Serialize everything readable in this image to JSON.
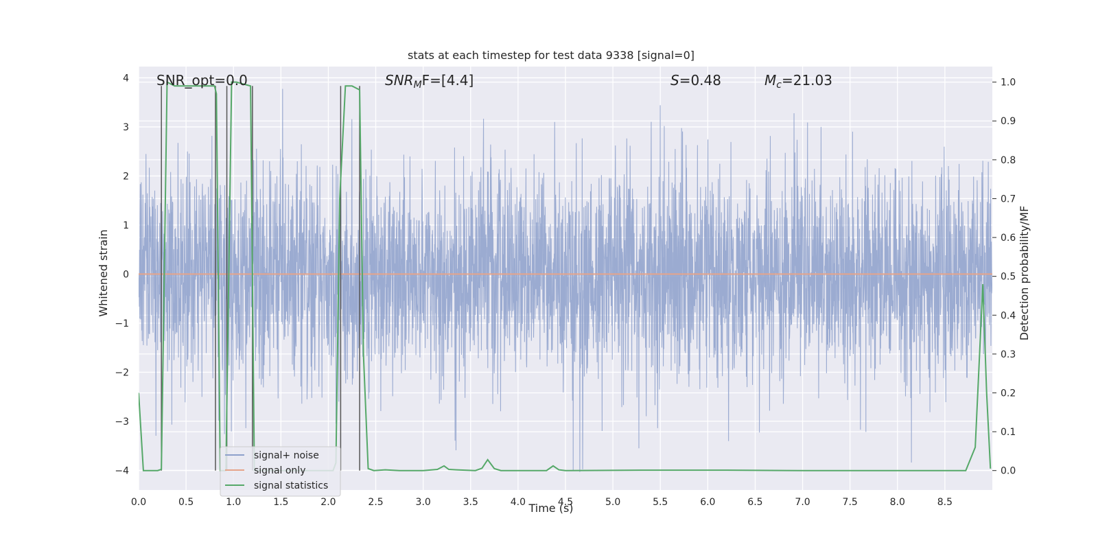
{
  "chart_data": {
    "type": "line",
    "title": "stats at each timestep for test data 9338 [signal=0]",
    "xlabel": "Time (s)",
    "ylabel": "Whitened strain",
    "ylabel_right": "Detection probability/MF",
    "xlim": [
      0.0,
      9.0
    ],
    "ylim": [
      -4.4,
      4.23
    ],
    "ylim_right": [
      -0.05,
      1.04
    ],
    "x_ticks": [
      "0.0",
      "0.5",
      "1.0",
      "1.5",
      "2.0",
      "2.5",
      "3.0",
      "3.5",
      "4.0",
      "4.5",
      "5.0",
      "5.5",
      "6.0",
      "6.5",
      "7.0",
      "7.5",
      "8.0",
      "8.5"
    ],
    "y_ticks": [
      "4",
      "3",
      "2",
      "1",
      "0",
      "−1",
      "−2",
      "−3",
      "−4"
    ],
    "y_right_ticks": [
      "1.0",
      "0.9",
      "0.8",
      "0.7",
      "0.6",
      "0.5",
      "0.4",
      "0.3",
      "0.2",
      "0.1",
      "0.0"
    ],
    "annotations": {
      "snr_opt": "SNR_opt=0.0",
      "snr_mf_sym": "SNR",
      "snr_mf_sub": "M",
      "snr_mf_rest": "F=[4.4]",
      "s_sym": "S",
      "s_val": "=0.48",
      "mc_sym": "M",
      "mc_sub": "c",
      "mc_val": "=21.03"
    },
    "legend": {
      "position": "lower-left",
      "entries": [
        "signal+ noise",
        "signal only",
        "signal statistics"
      ]
    },
    "colors": {
      "noise": "#8da0cb",
      "signal": "#e6a48a",
      "stats": "#55a868",
      "vlines": "#555555",
      "background": "#eaeaf2",
      "grid": "#ffffff"
    },
    "series": [
      {
        "name": "signal+ noise",
        "description_values": "white-noise strain, typical amplitude ~2, extremes ~3.8",
        "sigma": 1.05
      },
      {
        "name": "signal only",
        "x": [
          0.0,
          9.0
        ],
        "y": [
          0.0,
          0.0
        ]
      },
      {
        "name": "signal statistics",
        "x": [
          0.0,
          0.05,
          0.1,
          0.2,
          0.24,
          0.3,
          0.38,
          0.8,
          0.82,
          0.86,
          0.92,
          0.98,
          1.03,
          1.18,
          1.22,
          2.05,
          2.08,
          2.12,
          2.18,
          2.25,
          2.33,
          2.37,
          2.42,
          2.48,
          2.6,
          2.75,
          3.0,
          3.15,
          3.22,
          3.27,
          3.35,
          3.55,
          3.62,
          3.68,
          3.75,
          3.82,
          4.0,
          4.3,
          4.37,
          4.43,
          4.5,
          5.3,
          6.2,
          7.0,
          8.0,
          8.5,
          8.72,
          8.82,
          8.9,
          8.94,
          8.98
        ],
        "y": [
          0.2,
          0.0,
          0.0,
          0.0,
          0.003,
          1.0,
          0.99,
          0.99,
          0.97,
          0.0,
          0.0,
          1.0,
          1.0,
          0.99,
          0.0,
          0.0,
          0.02,
          0.7,
          0.99,
          0.99,
          0.98,
          0.3,
          0.005,
          0.0,
          0.002,
          0.0,
          0.0,
          0.003,
          0.012,
          0.003,
          0.002,
          0.0,
          0.006,
          0.028,
          0.005,
          0.0,
          0.0,
          0.0,
          0.012,
          0.002,
          0.0,
          0.001,
          0.001,
          0.0,
          0.0,
          0.0,
          0.0,
          0.06,
          0.48,
          0.2,
          0.005
        ]
      }
    ],
    "vertical_lines_x": [
      0.24,
      0.81,
      0.93,
      1.2,
      2.13,
      2.33
    ]
  }
}
